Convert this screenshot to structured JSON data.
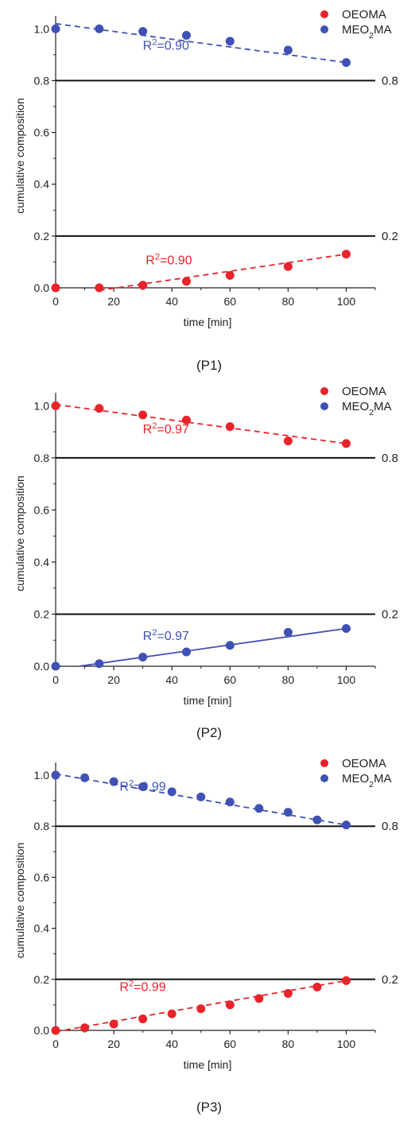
{
  "chart_data": [
    {
      "type": "scatter",
      "panel_label": "(P1)",
      "xlabel": "time [min]",
      "ylabel": "cumulative composition",
      "xlim": [
        0,
        110
      ],
      "ylim": [
        0,
        1.05
      ],
      "xticks": [
        0,
        20,
        40,
        60,
        80,
        100
      ],
      "yticks": [
        0.0,
        0.2,
        0.4,
        0.6,
        0.8,
        1.0
      ],
      "reference_lines": [
        {
          "y": 0.8,
          "label": "0.8"
        },
        {
          "y": 0.2,
          "label": "0.2"
        }
      ],
      "legend": {
        "placement": "top-right",
        "entries": [
          "OEOMA",
          "MEO2MA"
        ]
      },
      "series": [
        {
          "name": "OEOMA",
          "color": "#e8232a",
          "line_style": "dashed",
          "x": [
            0,
            15,
            30,
            45,
            60,
            80,
            100
          ],
          "y": [
            0.0,
            0.0,
            0.01,
            0.025,
            0.048,
            0.082,
            0.13
          ],
          "fit": {
            "x": [
              15,
              100
            ],
            "y": [
              -0.01,
              0.13
            ]
          },
          "r2_label": "R²=0.90"
        },
        {
          "name": "MEO2MA",
          "color": "#3f51b5",
          "line_style": "dashed",
          "x": [
            0,
            15,
            30,
            45,
            60,
            80,
            100
          ],
          "y": [
            1.0,
            1.0,
            0.99,
            0.975,
            0.952,
            0.918,
            0.87
          ],
          "fit": {
            "x": [
              0,
              100
            ],
            "y": [
              1.02,
              0.87
            ]
          },
          "r2_label": "R²=0.90"
        }
      ]
    },
    {
      "type": "scatter",
      "panel_label": "(P2)",
      "xlabel": "time [min]",
      "ylabel": "cumulative composition",
      "xlim": [
        0,
        110
      ],
      "ylim": [
        0,
        1.05
      ],
      "xticks": [
        0,
        20,
        40,
        60,
        80,
        100
      ],
      "yticks": [
        0.0,
        0.2,
        0.4,
        0.6,
        0.8,
        1.0
      ],
      "reference_lines": [
        {
          "y": 0.8,
          "label": "0.8"
        },
        {
          "y": 0.2,
          "label": "0.2"
        }
      ],
      "legend": {
        "placement": "top-right",
        "entries": [
          "OEOMA",
          "MEO2MA"
        ]
      },
      "series": [
        {
          "name": "OEOMA",
          "color": "#e8232a",
          "line_style": "dashed",
          "x": [
            0,
            15,
            30,
            45,
            60,
            80,
            100
          ],
          "y": [
            1.0,
            0.99,
            0.965,
            0.945,
            0.92,
            0.865,
            0.855
          ],
          "fit": {
            "x": [
              0,
              100
            ],
            "y": [
              1.005,
              0.855
            ]
          },
          "r2_label": "R²=0.97"
        },
        {
          "name": "MEO2MA",
          "color": "#3f51b5",
          "line_style": "solid",
          "x": [
            0,
            15,
            30,
            45,
            60,
            80,
            100
          ],
          "y": [
            0.0,
            0.01,
            0.035,
            0.055,
            0.08,
            0.13,
            0.145
          ],
          "fit": {
            "x": [
              8,
              100
            ],
            "y": [
              0.0,
              0.145
            ]
          },
          "r2_label": "R²=0.97"
        }
      ]
    },
    {
      "type": "scatter",
      "panel_label": "(P3)",
      "xlabel": "time [min]",
      "ylabel": "cumulative composition",
      "xlim": [
        0,
        110
      ],
      "ylim": [
        0,
        1.05
      ],
      "xticks": [
        0,
        20,
        40,
        60,
        80,
        100
      ],
      "yticks": [
        0.0,
        0.2,
        0.4,
        0.6,
        0.8,
        1.0
      ],
      "reference_lines": [
        {
          "y": 0.8,
          "label": "0.8"
        },
        {
          "y": 0.2,
          "label": "0.2"
        }
      ],
      "legend": {
        "placement": "top-right",
        "entries": [
          "OEOMA",
          "MEO2MA"
        ]
      },
      "series": [
        {
          "name": "OEOMA",
          "color": "#e8232a",
          "line_style": "dashed",
          "x": [
            0,
            10,
            20,
            30,
            40,
            50,
            60,
            70,
            80,
            90,
            100
          ],
          "y": [
            0.0,
            0.01,
            0.025,
            0.045,
            0.065,
            0.085,
            0.1,
            0.125,
            0.145,
            0.17,
            0.195
          ],
          "fit": {
            "x": [
              0,
              100
            ],
            "y": [
              -0.005,
              0.195
            ]
          },
          "r2_label": "R²=0.99"
        },
        {
          "name": "MEO2MA",
          "color": "#3f51b5",
          "line_style": "dashed",
          "x": [
            0,
            10,
            20,
            30,
            40,
            50,
            60,
            70,
            80,
            90,
            100
          ],
          "y": [
            1.0,
            0.99,
            0.975,
            0.955,
            0.935,
            0.915,
            0.895,
            0.87,
            0.855,
            0.825,
            0.805
          ],
          "fit": {
            "x": [
              0,
              100
            ],
            "y": [
              1.005,
              0.805
            ]
          },
          "r2_label": "R²=0.99"
        }
      ]
    }
  ]
}
